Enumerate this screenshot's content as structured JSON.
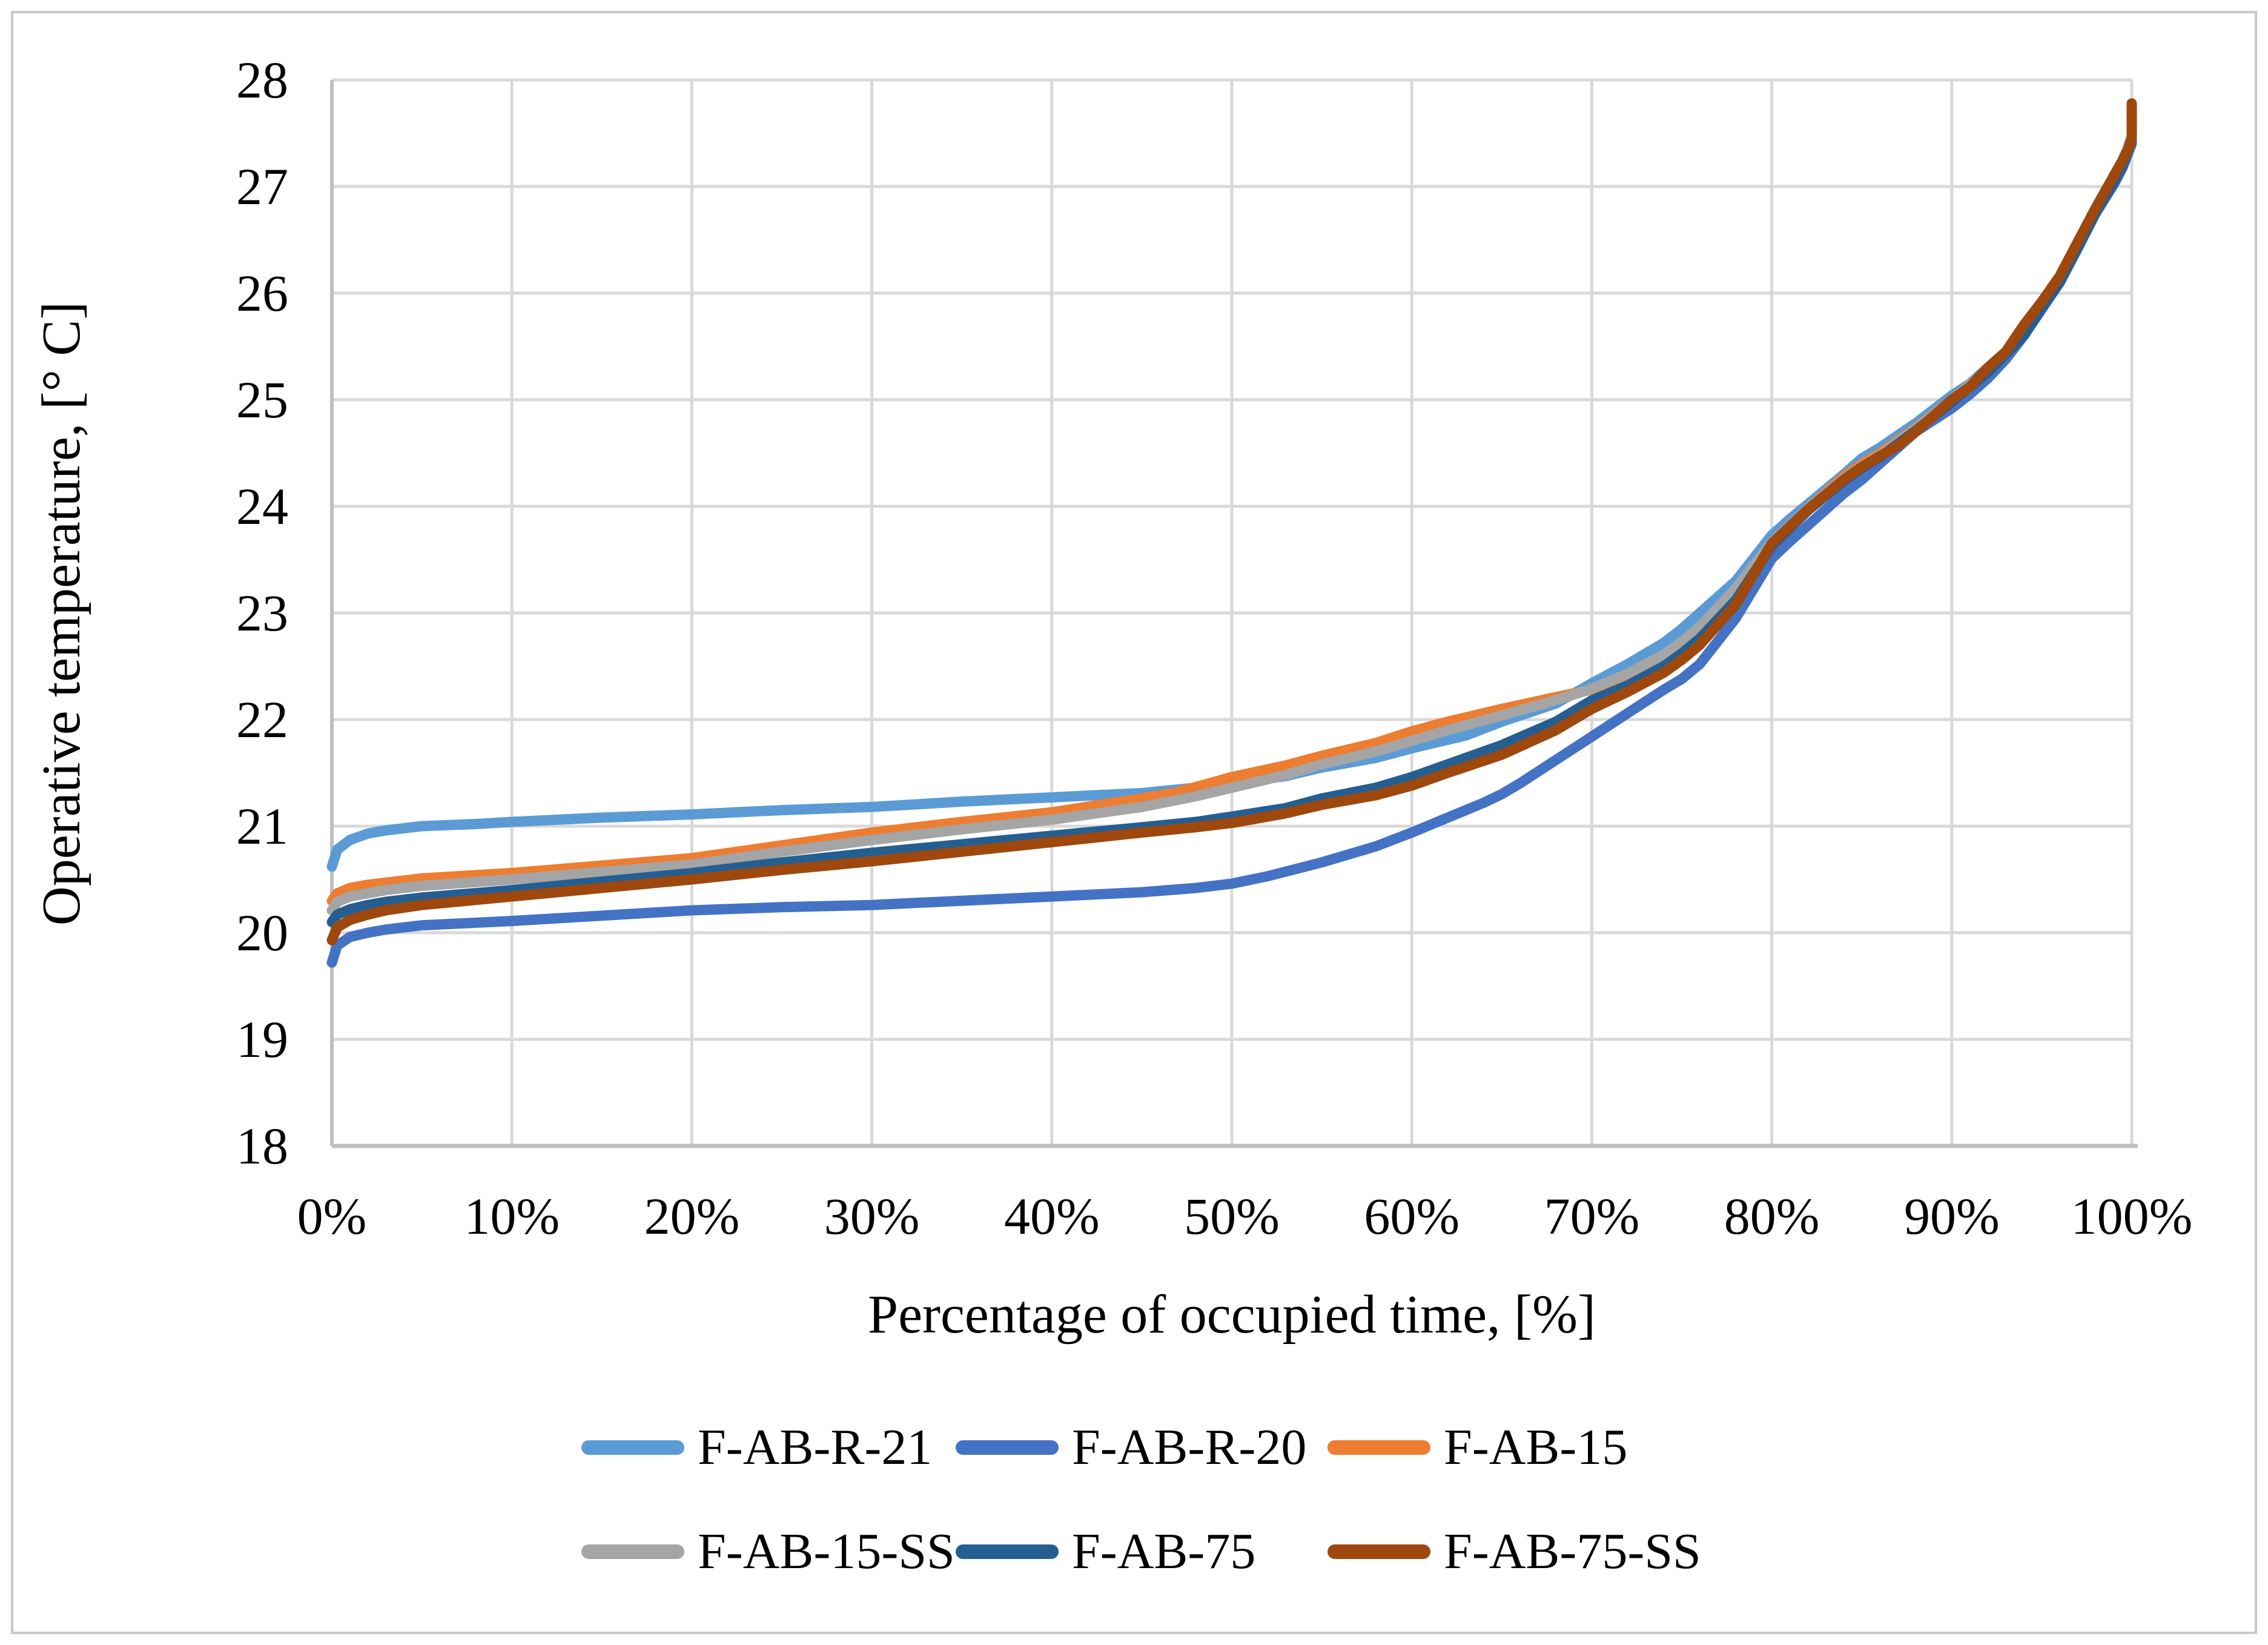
{
  "figure": {
    "background_color": "#FFFFFF",
    "border_color": "#C9C9C9"
  },
  "chart_data": {
    "type": "line",
    "title": "",
    "xlabel": "Percentage of occupied time, [%]",
    "ylabel": "Operative temperature, [° C]",
    "xlim": [
      0,
      100
    ],
    "ylim": [
      18,
      28
    ],
    "grid": true,
    "gridline_color": "#D9D9D9",
    "axis_line_color": "#BFBFBF",
    "legend_position": "bottom",
    "x_tick_values": [
      0,
      10,
      20,
      30,
      40,
      50,
      60,
      70,
      80,
      90,
      100
    ],
    "x_tick_labels": [
      "0%",
      "10%",
      "20%",
      "30%",
      "40%",
      "50%",
      "60%",
      "70%",
      "80%",
      "90%",
      "100%"
    ],
    "y_tick_values": [
      18,
      19,
      20,
      21,
      22,
      23,
      24,
      25,
      26,
      27,
      28
    ],
    "y_tick_labels": [
      "18",
      "19",
      "20",
      "21",
      "22",
      "23",
      "24",
      "25",
      "26",
      "27",
      "28"
    ],
    "series": [
      {
        "name": "F-AB-R-21",
        "color": "#5B9BD5",
        "points": [
          [
            0,
            20.62
          ],
          [
            0.3,
            20.78
          ],
          [
            1,
            20.87
          ],
          [
            2,
            20.93
          ],
          [
            3,
            20.96
          ],
          [
            5,
            21.0
          ],
          [
            8,
            21.02
          ],
          [
            10,
            21.04
          ],
          [
            15,
            21.08
          ],
          [
            20,
            21.11
          ],
          [
            25,
            21.15
          ],
          [
            30,
            21.18
          ],
          [
            35,
            21.23
          ],
          [
            40,
            21.27
          ],
          [
            45,
            21.31
          ],
          [
            48,
            21.36
          ],
          [
            50,
            21.4
          ],
          [
            53,
            21.47
          ],
          [
            55,
            21.55
          ],
          [
            58,
            21.64
          ],
          [
            60,
            21.73
          ],
          [
            63,
            21.85
          ],
          [
            65,
            21.98
          ],
          [
            68,
            22.15
          ],
          [
            70,
            22.34
          ],
          [
            72,
            22.52
          ],
          [
            74,
            22.72
          ],
          [
            75,
            22.85
          ],
          [
            76,
            23.0
          ],
          [
            78,
            23.3
          ],
          [
            80,
            23.73
          ],
          [
            81,
            23.88
          ],
          [
            82,
            24.02
          ],
          [
            84,
            24.3
          ],
          [
            85,
            24.45
          ],
          [
            86,
            24.55
          ],
          [
            88,
            24.78
          ],
          [
            90,
            25.04
          ],
          [
            91,
            25.15
          ],
          [
            92,
            25.3
          ],
          [
            93,
            25.45
          ],
          [
            94,
            25.65
          ],
          [
            95,
            25.9
          ],
          [
            96,
            26.15
          ],
          [
            97,
            26.48
          ],
          [
            98,
            26.8
          ],
          [
            99,
            27.08
          ],
          [
            99.5,
            27.25
          ],
          [
            100,
            27.45
          ],
          [
            100,
            27.7
          ]
        ]
      },
      {
        "name": "F-AB-R-20",
        "color": "#4472C4",
        "points": [
          [
            0,
            19.72
          ],
          [
            0.3,
            19.88
          ],
          [
            1,
            19.96
          ],
          [
            2,
            20.0
          ],
          [
            3,
            20.03
          ],
          [
            5,
            20.07
          ],
          [
            10,
            20.11
          ],
          [
            15,
            20.16
          ],
          [
            20,
            20.21
          ],
          [
            25,
            20.24
          ],
          [
            30,
            20.26
          ],
          [
            35,
            20.3
          ],
          [
            40,
            20.34
          ],
          [
            45,
            20.38
          ],
          [
            48,
            20.42
          ],
          [
            50,
            20.46
          ],
          [
            52,
            20.53
          ],
          [
            55,
            20.66
          ],
          [
            58,
            20.81
          ],
          [
            60,
            20.94
          ],
          [
            62,
            21.08
          ],
          [
            64,
            21.22
          ],
          [
            65,
            21.3
          ],
          [
            66,
            21.4
          ],
          [
            68,
            21.62
          ],
          [
            70,
            21.84
          ],
          [
            72,
            22.06
          ],
          [
            74,
            22.28
          ],
          [
            75,
            22.38
          ],
          [
            76,
            22.52
          ],
          [
            78,
            22.95
          ],
          [
            80,
            23.51
          ],
          [
            81,
            23.67
          ],
          [
            82,
            23.82
          ],
          [
            84,
            24.12
          ],
          [
            85,
            24.25
          ],
          [
            86,
            24.4
          ],
          [
            88,
            24.7
          ],
          [
            90,
            24.92
          ],
          [
            91,
            25.05
          ],
          [
            92,
            25.2
          ],
          [
            93,
            25.38
          ],
          [
            94,
            25.6
          ],
          [
            95,
            25.85
          ],
          [
            96,
            26.1
          ],
          [
            97,
            26.42
          ],
          [
            98,
            26.75
          ],
          [
            99,
            27.02
          ],
          [
            99.5,
            27.18
          ],
          [
            100,
            27.4
          ],
          [
            100,
            27.68
          ]
        ]
      },
      {
        "name": "F-AB-15",
        "color": "#ED7D31",
        "points": [
          [
            0,
            20.3
          ],
          [
            0.3,
            20.37
          ],
          [
            1,
            20.42
          ],
          [
            2,
            20.45
          ],
          [
            3,
            20.47
          ],
          [
            5,
            20.51
          ],
          [
            10,
            20.56
          ],
          [
            15,
            20.63
          ],
          [
            20,
            20.7
          ],
          [
            25,
            20.82
          ],
          [
            30,
            20.94
          ],
          [
            35,
            21.04
          ],
          [
            40,
            21.13
          ],
          [
            45,
            21.26
          ],
          [
            47,
            21.32
          ],
          [
            50,
            21.46
          ],
          [
            53,
            21.57
          ],
          [
            55,
            21.66
          ],
          [
            58,
            21.78
          ],
          [
            60,
            21.89
          ],
          [
            62,
            21.98
          ],
          [
            65,
            22.1
          ],
          [
            68,
            22.21
          ],
          [
            70,
            22.28
          ],
          [
            72,
            22.42
          ],
          [
            74,
            22.6
          ],
          [
            75,
            22.72
          ],
          [
            76,
            22.86
          ],
          [
            78,
            23.22
          ],
          [
            80,
            23.66
          ],
          [
            82,
            23.98
          ],
          [
            84,
            24.28
          ],
          [
            85,
            24.4
          ],
          [
            86,
            24.5
          ],
          [
            88,
            24.74
          ],
          [
            90,
            25.0
          ],
          [
            92,
            25.28
          ],
          [
            94,
            25.62
          ],
          [
            95,
            25.88
          ],
          [
            96,
            26.12
          ],
          [
            97,
            26.45
          ],
          [
            98,
            26.78
          ],
          [
            99,
            27.06
          ],
          [
            99.5,
            27.22
          ],
          [
            100,
            27.45
          ],
          [
            100,
            27.72
          ]
        ]
      },
      {
        "name": "F-AB-15-SS",
        "color": "#A5A5A5",
        "points": [
          [
            0,
            20.21
          ],
          [
            0.3,
            20.29
          ],
          [
            1,
            20.34
          ],
          [
            2,
            20.37
          ],
          [
            3,
            20.4
          ],
          [
            5,
            20.44
          ],
          [
            10,
            20.5
          ],
          [
            15,
            20.57
          ],
          [
            20,
            20.64
          ],
          [
            25,
            20.76
          ],
          [
            30,
            20.87
          ],
          [
            35,
            20.97
          ],
          [
            40,
            21.06
          ],
          [
            45,
            21.18
          ],
          [
            48,
            21.28
          ],
          [
            50,
            21.36
          ],
          [
            53,
            21.48
          ],
          [
            55,
            21.58
          ],
          [
            58,
            21.7
          ],
          [
            60,
            21.8
          ],
          [
            62,
            21.9
          ],
          [
            65,
            22.04
          ],
          [
            68,
            22.18
          ],
          [
            70,
            22.29
          ],
          [
            72,
            22.43
          ],
          [
            74,
            22.61
          ],
          [
            75,
            22.73
          ],
          [
            76,
            22.87
          ],
          [
            78,
            23.23
          ],
          [
            80,
            23.66
          ],
          [
            82,
            23.98
          ],
          [
            84,
            24.26
          ],
          [
            85,
            24.38
          ],
          [
            86,
            24.48
          ],
          [
            88,
            24.73
          ],
          [
            90,
            25.0
          ],
          [
            92,
            25.28
          ],
          [
            94,
            25.62
          ],
          [
            95,
            25.88
          ],
          [
            96,
            26.12
          ],
          [
            97,
            26.45
          ],
          [
            98,
            26.78
          ],
          [
            99,
            27.06
          ],
          [
            99.5,
            27.23
          ],
          [
            100,
            27.48
          ],
          [
            100,
            27.73
          ]
        ]
      },
      {
        "name": "F-AB-75",
        "color": "#255E91",
        "points": [
          [
            0,
            20.1
          ],
          [
            0.3,
            20.17
          ],
          [
            1,
            20.22
          ],
          [
            2,
            20.26
          ],
          [
            3,
            20.29
          ],
          [
            5,
            20.33
          ],
          [
            10,
            20.4
          ],
          [
            15,
            20.48
          ],
          [
            20,
            20.56
          ],
          [
            25,
            20.66
          ],
          [
            30,
            20.75
          ],
          [
            35,
            20.83
          ],
          [
            40,
            20.91
          ],
          [
            45,
            20.99
          ],
          [
            48,
            21.04
          ],
          [
            50,
            21.09
          ],
          [
            53,
            21.17
          ],
          [
            55,
            21.26
          ],
          [
            58,
            21.36
          ],
          [
            60,
            21.46
          ],
          [
            62,
            21.58
          ],
          [
            65,
            21.76
          ],
          [
            68,
            21.98
          ],
          [
            70,
            22.18
          ],
          [
            72,
            22.32
          ],
          [
            74,
            22.5
          ],
          [
            75,
            22.62
          ],
          [
            76,
            22.76
          ],
          [
            78,
            23.12
          ],
          [
            80,
            23.63
          ],
          [
            82,
            23.96
          ],
          [
            84,
            24.24
          ],
          [
            85,
            24.36
          ],
          [
            86,
            24.46
          ],
          [
            88,
            24.71
          ],
          [
            90,
            24.98
          ],
          [
            92,
            25.26
          ],
          [
            94,
            25.6
          ],
          [
            95,
            25.86
          ],
          [
            96,
            26.1
          ],
          [
            97,
            26.43
          ],
          [
            98,
            26.76
          ],
          [
            99,
            27.04
          ],
          [
            99.5,
            27.2
          ],
          [
            100,
            27.44
          ],
          [
            100,
            27.7
          ]
        ]
      },
      {
        "name": "F-AB-75-SS",
        "color": "#9E480E",
        "points": [
          [
            0,
            19.93
          ],
          [
            0.3,
            20.05
          ],
          [
            1,
            20.12
          ],
          [
            2,
            20.17
          ],
          [
            3,
            20.21
          ],
          [
            5,
            20.26
          ],
          [
            10,
            20.34
          ],
          [
            15,
            20.42
          ],
          [
            20,
            20.5
          ],
          [
            25,
            20.59
          ],
          [
            30,
            20.67
          ],
          [
            35,
            20.76
          ],
          [
            40,
            20.85
          ],
          [
            45,
            20.94
          ],
          [
            48,
            20.99
          ],
          [
            50,
            21.03
          ],
          [
            53,
            21.12
          ],
          [
            55,
            21.2
          ],
          [
            58,
            21.29
          ],
          [
            60,
            21.38
          ],
          [
            62,
            21.5
          ],
          [
            65,
            21.67
          ],
          [
            68,
            21.9
          ],
          [
            70,
            22.1
          ],
          [
            72,
            22.26
          ],
          [
            74,
            22.44
          ],
          [
            75,
            22.56
          ],
          [
            76,
            22.7
          ],
          [
            78,
            23.08
          ],
          [
            80,
            23.65
          ],
          [
            82,
            23.97
          ],
          [
            84,
            24.25
          ],
          [
            85,
            24.37
          ],
          [
            86,
            24.47
          ],
          [
            87,
            24.57
          ],
          [
            88,
            24.7
          ],
          [
            89,
            24.85
          ],
          [
            90,
            25.0
          ],
          [
            91,
            25.12
          ],
          [
            92,
            25.3
          ],
          [
            93,
            25.45
          ],
          [
            94,
            25.7
          ],
          [
            95,
            25.92
          ],
          [
            96,
            26.16
          ],
          [
            97,
            26.48
          ],
          [
            98,
            26.8
          ],
          [
            98.5,
            26.95
          ],
          [
            99,
            27.1
          ],
          [
            99.5,
            27.25
          ],
          [
            99.8,
            27.35
          ],
          [
            100,
            27.45
          ],
          [
            100,
            27.78
          ]
        ]
      }
    ]
  },
  "legend": {
    "items": [
      {
        "label": "F-AB-R-21"
      },
      {
        "label": "F-AB-R-20"
      },
      {
        "label": "F-AB-15"
      },
      {
        "label": "F-AB-15-SS"
      },
      {
        "label": "F-AB-75"
      },
      {
        "label": "F-AB-75-SS"
      }
    ]
  }
}
